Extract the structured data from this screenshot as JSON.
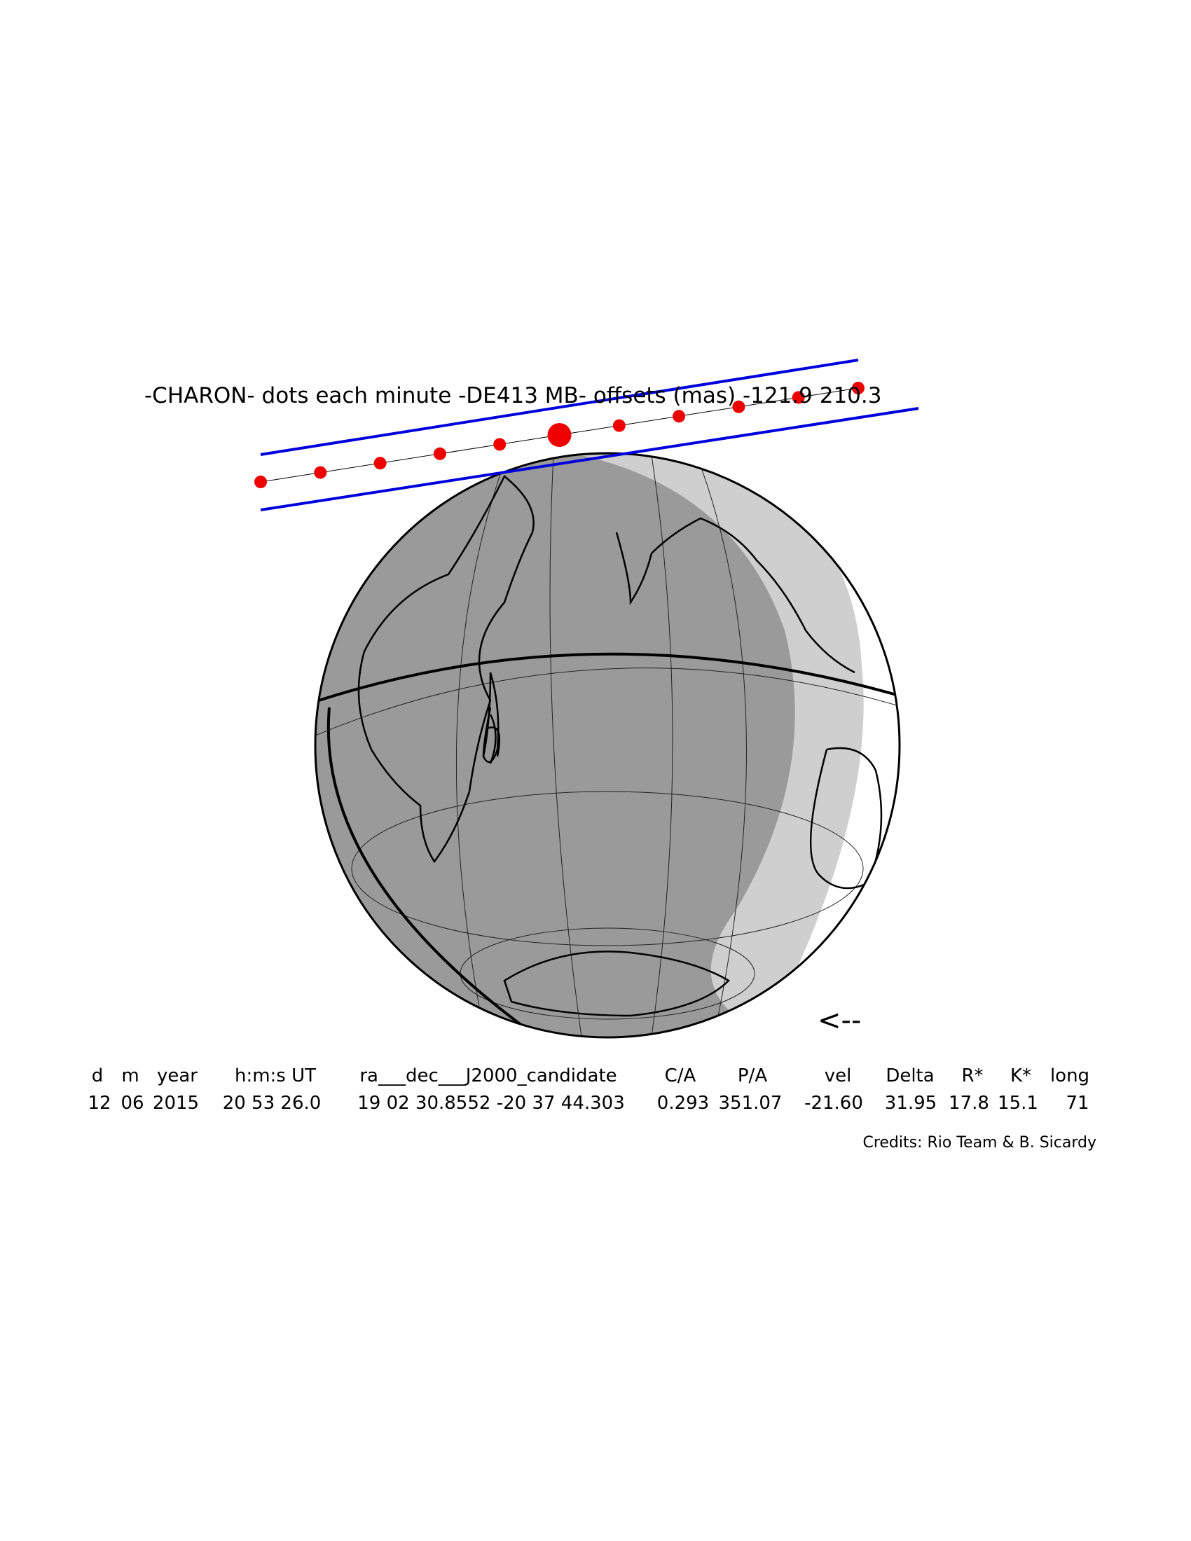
{
  "title": "-CHARON- dots each minute -DE413 MB- offsets (mas) -121.9 210.3",
  "table": {
    "header": [
      "d",
      "m",
      "year",
      "h:m:s UT",
      "ra___dec___J2000_candidate",
      "C/A",
      "P/A",
      "vel",
      "Delta",
      "R*",
      "K*",
      "long"
    ],
    "values": [
      "12",
      "06",
      "2015",
      "20 53 26.0",
      "19 02 30.8552 -20 37 44.303",
      "0.293",
      "351.07",
      "-21.60",
      "31.95",
      "17.8",
      "15.1",
      "71"
    ]
  },
  "arrow": "<--",
  "credits": "Credits: Rio Team & B. Sicardy"
}
